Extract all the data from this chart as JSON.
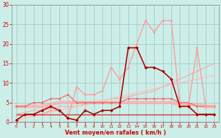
{
  "title": "",
  "xlabel": "Vent moyen/en rafales ( km/h )",
  "background_color": "#cceee8",
  "grid_color": "#aacccc",
  "xlim": [
    -0.5,
    23.5
  ],
  "ylim": [
    0,
    30
  ],
  "yticks": [
    0,
    5,
    10,
    15,
    20,
    25,
    30
  ],
  "xticks": [
    0,
    1,
    2,
    3,
    4,
    5,
    6,
    7,
    8,
    9,
    10,
    11,
    12,
    13,
    14,
    15,
    16,
    17,
    18,
    19,
    20,
    21,
    22,
    23
  ],
  "series": [
    {
      "name": "dark_red_main",
      "x": [
        0,
        1,
        2,
        3,
        4,
        5,
        6,
        7,
        8,
        9,
        10,
        11,
        12,
        13,
        14,
        15,
        16,
        17,
        18,
        19,
        20,
        21,
        22,
        23
      ],
      "y": [
        0.5,
        2,
        2,
        3,
        4,
        3,
        1,
        0.5,
        3,
        2,
        3,
        3,
        4,
        19,
        19,
        14,
        14,
        13,
        11,
        4,
        4,
        2,
        2,
        2
      ],
      "color": "#aa0000",
      "lw": 1.2,
      "marker": "D",
      "ms": 2.5,
      "zorder": 6,
      "alpha": 1.0
    },
    {
      "name": "light_pink_zigzag",
      "x": [
        0,
        1,
        2,
        3,
        4,
        5,
        6,
        7,
        8,
        9,
        10,
        11,
        12,
        13,
        14,
        15,
        16,
        17,
        18,
        19,
        20,
        21,
        22,
        23
      ],
      "y": [
        0.5,
        2,
        2,
        2,
        3,
        3,
        1,
        9,
        7,
        7,
        8,
        14,
        11,
        14,
        20,
        26,
        23,
        26,
        26,
        4,
        4,
        19,
        4,
        4
      ],
      "color": "#ff9999",
      "lw": 1.0,
      "marker": "D",
      "ms": 2.0,
      "zorder": 4,
      "alpha": 1.0
    },
    {
      "name": "light_linear_rising",
      "x": [
        0,
        1,
        2,
        3,
        4,
        5,
        6,
        7,
        8,
        9,
        10,
        11,
        12,
        13,
        14,
        15,
        16,
        17,
        18,
        19,
        20,
        21,
        22,
        23
      ],
      "y": [
        0.5,
        1.0,
        1.5,
        2.0,
        2.5,
        3.0,
        3.5,
        4.0,
        4.5,
        5.0,
        5.5,
        6.0,
        6.5,
        7.0,
        7.5,
        8.0,
        8.5,
        9.0,
        9.5,
        10.0,
        10.5,
        11.0,
        11.5,
        12.0
      ],
      "color": "#ffbbbb",
      "lw": 1.0,
      "marker": null,
      "ms": 0,
      "zorder": 2,
      "alpha": 0.9
    },
    {
      "name": "medium_pink_linear",
      "x": [
        0,
        1,
        2,
        3,
        4,
        5,
        6,
        7,
        8,
        9,
        10,
        11,
        12,
        13,
        14,
        15,
        16,
        17,
        18,
        19,
        20,
        21,
        22,
        23
      ],
      "y": [
        2,
        2.5,
        3,
        3,
        3.5,
        4,
        4,
        4,
        4.5,
        5,
        5.5,
        6,
        6,
        6.5,
        7,
        7.5,
        8,
        9,
        10,
        11,
        12,
        13,
        14,
        15
      ],
      "color": "#ff9999",
      "lw": 1.0,
      "marker": null,
      "ms": 0,
      "zorder": 1,
      "alpha": 0.7
    },
    {
      "name": "thick_flat_pink",
      "x": [
        0,
        1,
        2,
        3,
        4,
        5,
        6,
        7,
        8,
        9,
        10,
        11,
        12,
        13,
        14,
        15,
        16,
        17,
        18,
        19,
        20,
        21,
        22,
        23
      ],
      "y": [
        4,
        4,
        4,
        4,
        4.5,
        5,
        5,
        5,
        5,
        5,
        5,
        5,
        5,
        5,
        5,
        5,
        5,
        5,
        5,
        4.5,
        4.5,
        4.5,
        4,
        4
      ],
      "color": "#ffaaaa",
      "lw": 3.5,
      "marker": null,
      "ms": 0,
      "zorder": 3,
      "alpha": 0.75
    },
    {
      "name": "medium_red_flat",
      "x": [
        0,
        1,
        2,
        3,
        4,
        5,
        6,
        7,
        8,
        9,
        10,
        11,
        12,
        13,
        14,
        15,
        16,
        17,
        18,
        19,
        20,
        21,
        22,
        23
      ],
      "y": [
        2,
        2,
        2,
        2,
        2,
        2,
        2,
        2,
        2,
        2,
        2,
        2,
        2,
        2,
        2,
        2,
        2,
        2,
        2,
        2,
        2,
        2,
        2,
        2
      ],
      "color": "#cc3333",
      "lw": 1.0,
      "marker": null,
      "ms": 0,
      "zorder": 4,
      "alpha": 1.0
    },
    {
      "name": "red_medium_with_markers",
      "x": [
        0,
        1,
        2,
        3,
        4,
        5,
        6,
        7,
        8,
        9,
        10,
        11,
        12,
        13,
        14,
        15,
        16,
        17,
        18,
        19,
        20,
        21,
        22,
        23
      ],
      "y": [
        4,
        4,
        5,
        5,
        6,
        6,
        7,
        5,
        5,
        5,
        5,
        5,
        5,
        6,
        6,
        6,
        6,
        6,
        6,
        5,
        5,
        4,
        4,
        4
      ],
      "color": "#ee6666",
      "lw": 1.0,
      "marker": "D",
      "ms": 2.0,
      "zorder": 3,
      "alpha": 0.9
    }
  ],
  "tick_color": "#cc0000",
  "axis_label_color": "#cc0000",
  "axis_color": "#999999"
}
